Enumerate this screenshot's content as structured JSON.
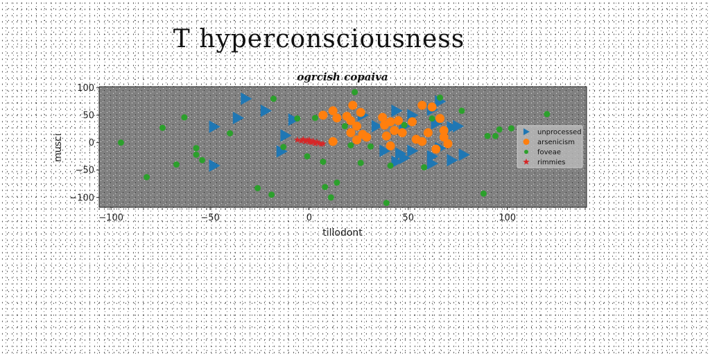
{
  "suptitle": "T hyperconsciousness",
  "chart_data": {
    "type": "scatter",
    "title": "ogrcish copaiva",
    "xlabel": "tillodont",
    "ylabel": "musci",
    "xlim": [
      -106,
      140
    ],
    "ylim": [
      -118,
      102
    ],
    "xticks": [
      -100,
      -50,
      0,
      50,
      100
    ],
    "yticks": [
      -100,
      -50,
      0,
      50,
      100
    ],
    "background": "#808080",
    "legend_position": "right",
    "series": [
      {
        "name": "unprocessed",
        "marker": "triangle-right",
        "color": "#1f77b4",
        "points": [
          [
            -32,
            80
          ],
          [
            -22,
            58
          ],
          [
            -36,
            45
          ],
          [
            -48,
            29
          ],
          [
            -12,
            13
          ],
          [
            -14,
            -16
          ],
          [
            -48,
            -42
          ],
          [
            -8,
            42
          ],
          [
            27,
            50
          ],
          [
            34,
            30
          ],
          [
            44,
            58
          ],
          [
            52,
            50
          ],
          [
            48,
            30
          ],
          [
            38,
            -15
          ],
          [
            46,
            -20
          ],
          [
            52,
            -15
          ],
          [
            62,
            -25
          ],
          [
            48,
            -28
          ],
          [
            44,
            -35
          ],
          [
            62,
            -38
          ],
          [
            66,
            75
          ],
          [
            62,
            60
          ],
          [
            64,
            35
          ],
          [
            72,
            28
          ],
          [
            75,
            30
          ],
          [
            72,
            -32
          ],
          [
            78,
            -22
          ],
          [
            66,
            -10
          ]
        ]
      },
      {
        "name": "arsenicism",
        "marker": "circle",
        "color": "#ff7f0e",
        "points": [
          [
            7,
            50
          ],
          [
            12,
            58
          ],
          [
            14,
            45
          ],
          [
            19,
            48
          ],
          [
            21,
            40
          ],
          [
            22,
            68
          ],
          [
            24,
            30
          ],
          [
            26,
            55
          ],
          [
            27,
            15
          ],
          [
            21,
            18
          ],
          [
            29,
            10
          ],
          [
            24,
            5
          ],
          [
            12,
            2
          ],
          [
            37,
            46
          ],
          [
            38,
            32
          ],
          [
            41,
            38
          ],
          [
            43,
            22
          ],
          [
            39,
            12
          ],
          [
            45,
            40
          ],
          [
            47,
            18
          ],
          [
            41,
            -6
          ],
          [
            52,
            38
          ],
          [
            54,
            6
          ],
          [
            57,
            68
          ],
          [
            57,
            2
          ],
          [
            62,
            65
          ],
          [
            60,
            18
          ],
          [
            64,
            -12
          ],
          [
            66,
            44
          ],
          [
            68,
            22
          ],
          [
            68,
            10
          ],
          [
            70,
            -2
          ]
        ]
      },
      {
        "name": "foveae",
        "marker": "circle-small",
        "color": "#2ca02c",
        "points": [
          [
            -95,
            0
          ],
          [
            -82,
            -63
          ],
          [
            -74,
            27
          ],
          [
            -67,
            -40
          ],
          [
            -63,
            46
          ],
          [
            -57,
            -10
          ],
          [
            -57,
            -22
          ],
          [
            -54,
            -32
          ],
          [
            -40,
            17
          ],
          [
            -26,
            -83
          ],
          [
            -19,
            -95
          ],
          [
            -18,
            80
          ],
          [
            -13,
            -8
          ],
          [
            -6,
            44
          ],
          [
            -1,
            -25
          ],
          [
            3,
            45
          ],
          [
            7,
            -35
          ],
          [
            8,
            -81
          ],
          [
            11,
            -100
          ],
          [
            14,
            -73
          ],
          [
            18,
            30
          ],
          [
            21,
            -5
          ],
          [
            23,
            92
          ],
          [
            26,
            -37
          ],
          [
            31,
            -7
          ],
          [
            39,
            -110
          ],
          [
            41,
            -42
          ],
          [
            48,
            32
          ],
          [
            58,
            -45
          ],
          [
            62,
            44
          ],
          [
            66,
            82
          ],
          [
            77,
            58
          ],
          [
            88,
            -93
          ],
          [
            90,
            12
          ],
          [
            94,
            12
          ],
          [
            96,
            24
          ],
          [
            102,
            26
          ],
          [
            120,
            52
          ]
        ]
      },
      {
        "name": "rimmies",
        "marker": "star",
        "color": "#d62728",
        "points": [
          [
            -6,
            5
          ],
          [
            -4,
            3
          ],
          [
            -3,
            6
          ],
          [
            -2,
            2
          ],
          [
            -1,
            4
          ],
          [
            0,
            1
          ],
          [
            0,
            5
          ],
          [
            1,
            0
          ],
          [
            2,
            3
          ],
          [
            3,
            -2
          ],
          [
            4,
            1
          ],
          [
            5,
            -1
          ],
          [
            6,
            -3
          ],
          [
            7,
            -2
          ]
        ]
      }
    ]
  }
}
